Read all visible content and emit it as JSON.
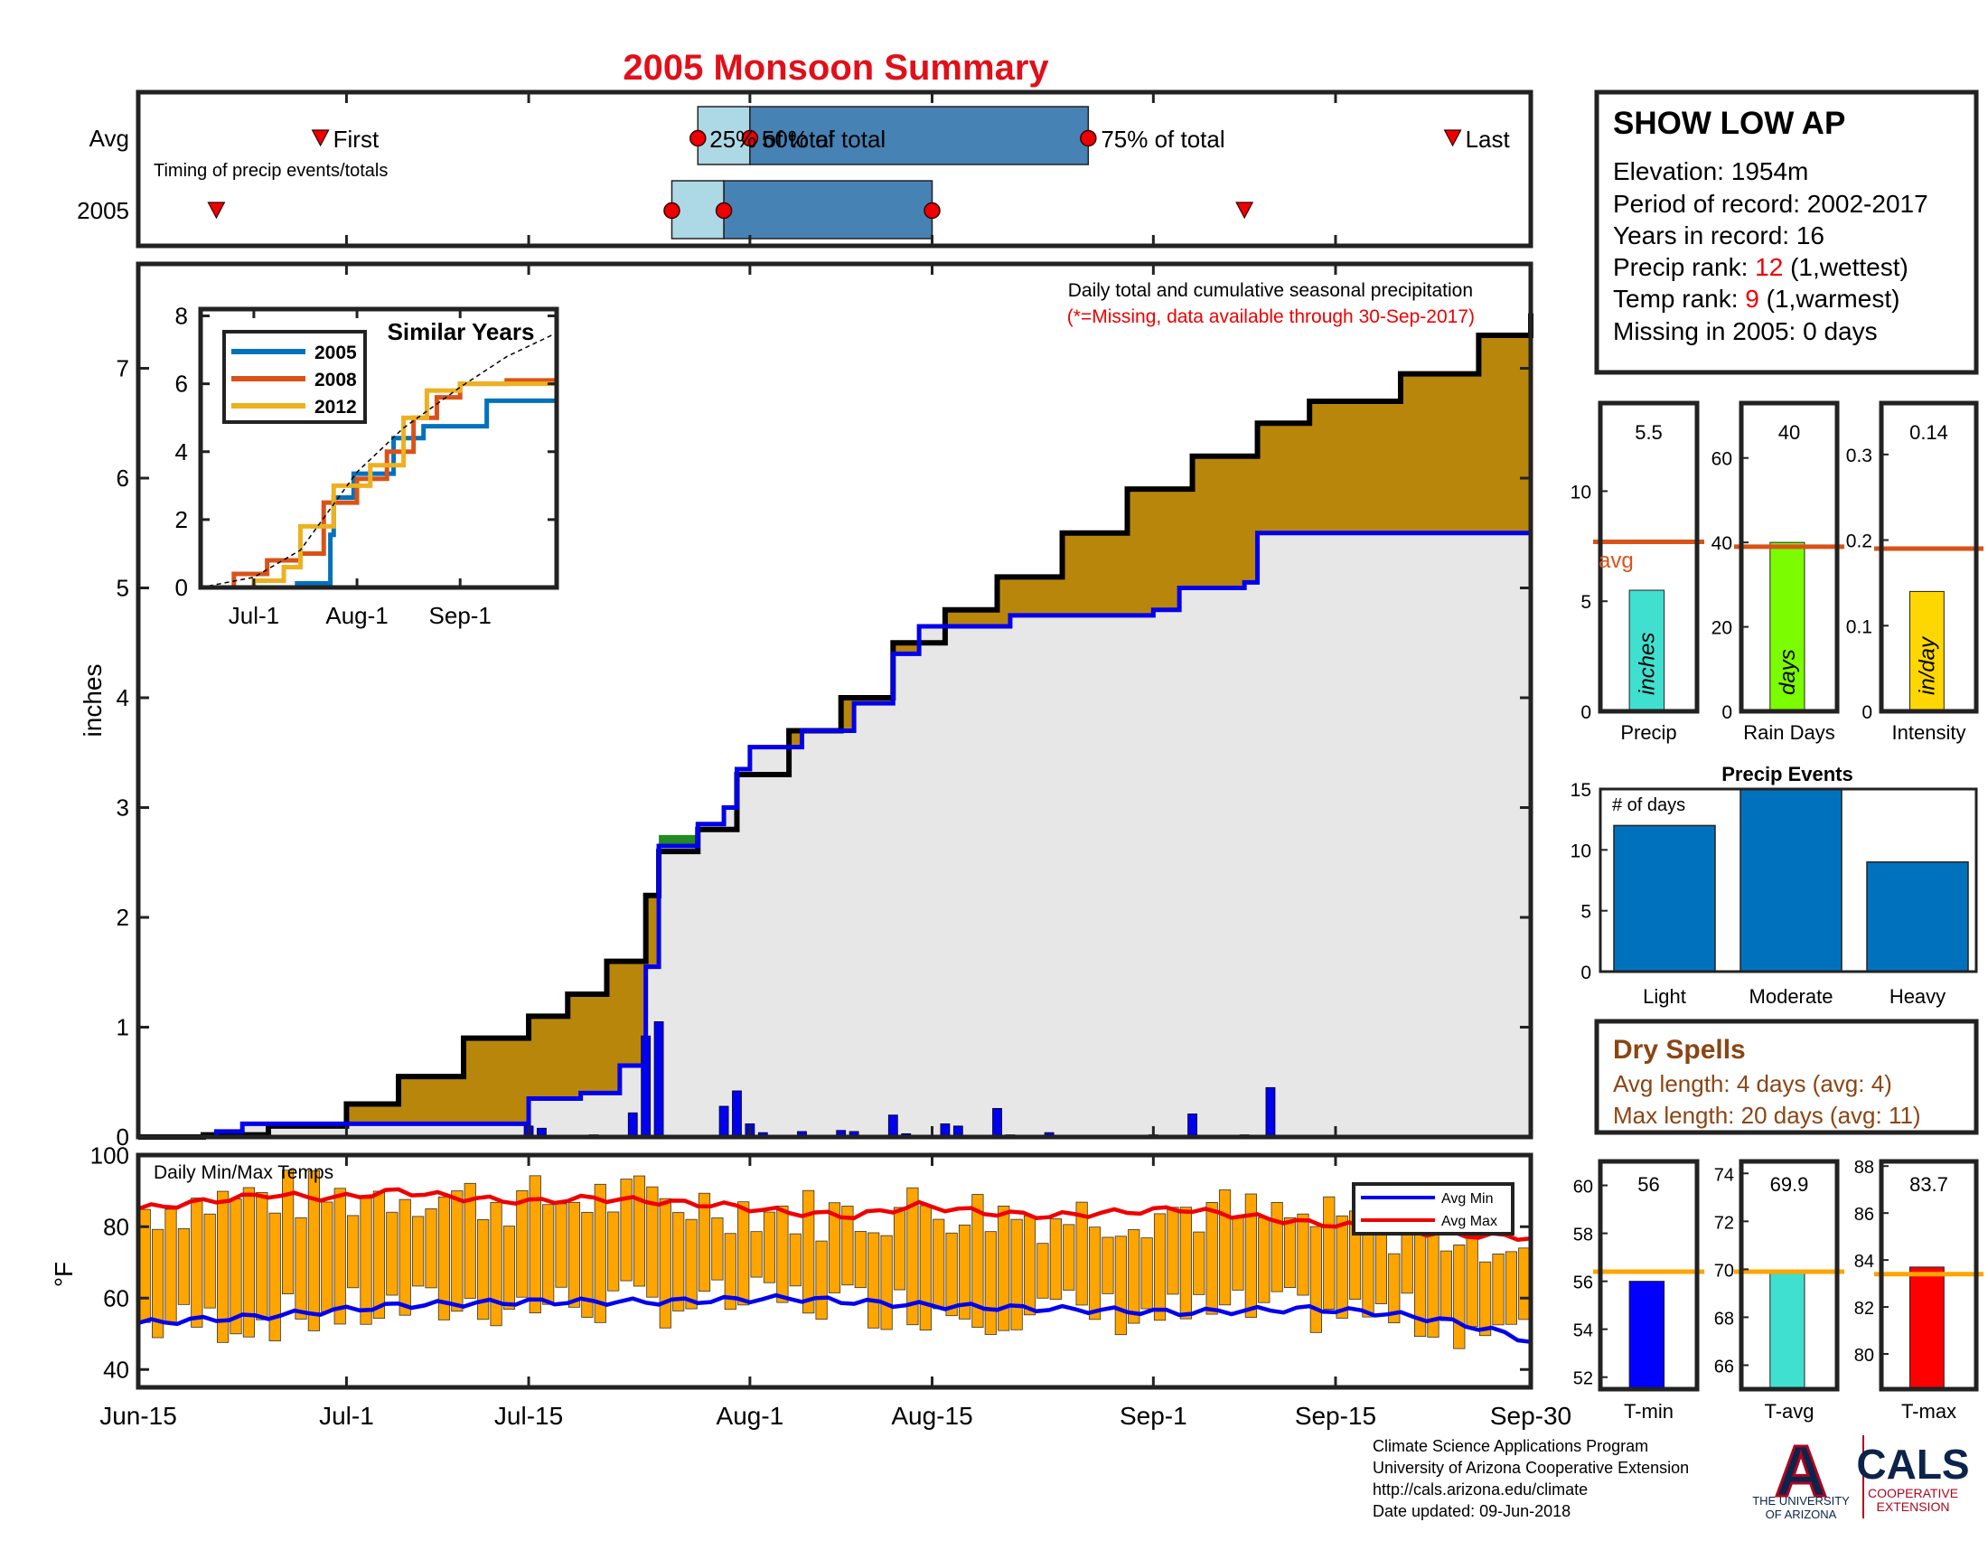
{
  "title": "2005 Monsoon Summary",
  "station": {
    "name": "SHOW LOW AP",
    "elevation": "Elevation: 1954m",
    "period": "Period of record: 2002-2017",
    "years": "Years in record: 16",
    "precip_rank_label": "Precip rank: ",
    "precip_rank_value": "12",
    "precip_rank_suffix": " (1,wettest)",
    "temp_rank_label": "Temp rank: ",
    "temp_rank_value": "9",
    "temp_rank_suffix": " (1,warmest)",
    "missing": "Missing in 2005: 0 days"
  },
  "timing": {
    "row_labels": [
      "Avg",
      "2005"
    ],
    "caption": "Timing of precip events/totals",
    "avg": {
      "first": "Jun-29",
      "q25": "Jul-28",
      "q50": "Aug-1",
      "q75": "Aug-27",
      "last": "Sep-24"
    },
    "y2005": {
      "first": "Jun-21",
      "q25": "Jul-26",
      "q50": "Jul-30",
      "q75": "Aug-15",
      "last": "Sep-8"
    },
    "labels": {
      "first": "First",
      "q25": "25% of total",
      "q50": "50% of total",
      "q75": "75% of total",
      "last": "Last"
    }
  },
  "x_axis": {
    "ticks": [
      "Jun-15",
      "Jul-1",
      "Jul-15",
      "Aug-1",
      "Aug-15",
      "Sep-1",
      "Sep-15",
      "Sep-30"
    ]
  },
  "main": {
    "ylabel": "inches",
    "ylim": [
      0,
      8
    ],
    "yticks": [
      "0",
      "1",
      "2",
      "3",
      "4",
      "5",
      "6",
      "7"
    ],
    "note1": "Daily total and cumulative seasonal precipitation",
    "note2": "(*=Missing, data available through 30-Sep-2017)",
    "colors": {
      "surplus_fill": "#b8860b",
      "deficit_fill": "#228b22",
      "base_fill": "#e8e7e7",
      "avg_line": "#000000",
      "year_line": "#0000ee",
      "daily_bar": "#0000ee"
    }
  },
  "inset": {
    "title": "Similar Years",
    "yticks": [
      "0",
      "2",
      "4",
      "6",
      "8"
    ],
    "xticks": [
      "Jul-1",
      "Aug-1",
      "Sep-1"
    ],
    "legend": [
      {
        "name": "2005",
        "color": "#0072bd"
      },
      {
        "name": "2008",
        "color": "#d95319"
      },
      {
        "name": "2012",
        "color": "#edb120"
      }
    ]
  },
  "temps": {
    "title": "Daily Min/Max Temps",
    "ylabel": "°F",
    "yticks": [
      "40",
      "60",
      "80",
      "100"
    ],
    "legend_min": "Avg Min",
    "legend_max": "Avg Max",
    "colors": {
      "bar": "#ffa500",
      "avg_min": "#0000ee",
      "avg_max": "#ee0000"
    }
  },
  "stats": [
    {
      "label": "Precip",
      "value": "5.5",
      "unit": "inches",
      "avg_label": "avg",
      "yticks": [
        "0",
        "5",
        "10"
      ],
      "color": "#40e0d0"
    },
    {
      "label": "Rain Days",
      "value": "40",
      "unit": "days",
      "yticks": [
        "0",
        "20",
        "40",
        "60"
      ],
      "color": "#7cfc00"
    },
    {
      "label": "Intensity",
      "value": "0.14",
      "unit": "in/day",
      "yticks": [
        "0",
        "0.1",
        "0.2",
        "0.3"
      ],
      "color": "#ffd700"
    }
  ],
  "events": {
    "title": "Precip Events",
    "ylabel": "# of days",
    "yticks": [
      "0",
      "5",
      "10",
      "15"
    ]
  },
  "dry_spells": {
    "title": "Dry Spells",
    "avg_length": "Avg length: 4 days (avg: 4)",
    "max_length": "Max length: 20 days (avg: 11)"
  },
  "temp_stats": [
    {
      "label": "T-min",
      "value": "56",
      "yticks": [
        "52",
        "54",
        "56",
        "58",
        "60"
      ],
      "color": "#0000ff"
    },
    {
      "label": "T-avg",
      "value": "69.9",
      "yticks": [
        "66",
        "68",
        "70",
        "72",
        "74"
      ],
      "color": "#40e0d0"
    },
    {
      "label": "T-max",
      "value": "83.7",
      "yticks": [
        "80",
        "82",
        "84",
        "86",
        "88"
      ],
      "color": "#ff0000"
    }
  ],
  "footer": {
    "line1": "Climate Science Applications Program",
    "line2": "University of Arizona Cooperative Extension",
    "line3": "http://cals.arizona.edu/climate",
    "line4": " Date updated: 09-Jun-2018"
  },
  "logos": {
    "ua_letter": "A",
    "ua_line1": "THE UNIVERSITY",
    "ua_line2": "OF ARIZONA",
    "cals": "CALS",
    "cals_line1": "COOPERATIVE",
    "cals_line2": "EXTENSION"
  },
  "chart_data": [
    {
      "type": "area",
      "title": "Daily total and cumulative seasonal precipitation",
      "ylabel": "inches",
      "ylim": [
        0,
        8
      ],
      "x_start": "Jun-15",
      "x_end": "Sep-30",
      "series": [
        {
          "name": "Avg",
          "points": [
            [
              "Jun-15",
              0
            ],
            [
              "Jun-20",
              0.02
            ],
            [
              "Jun-25",
              0.1
            ],
            [
              "Jul-1",
              0.3
            ],
            [
              "Jul-5",
              0.55
            ],
            [
              "Jul-10",
              0.9
            ],
            [
              "Jul-15",
              1.1
            ],
            [
              "Jul-18",
              1.3
            ],
            [
              "Jul-21",
              1.6
            ],
            [
              "Jul-24",
              2.2
            ],
            [
              "Jul-25",
              2.6
            ],
            [
              "Jul-28",
              2.8
            ],
            [
              "Jul-31",
              3.3
            ],
            [
              "Aug-4",
              3.7
            ],
            [
              "Aug-8",
              4.0
            ],
            [
              "Aug-12",
              4.5
            ],
            [
              "Aug-16",
              4.8
            ],
            [
              "Aug-20",
              5.1
            ],
            [
              "Aug-25",
              5.5
            ],
            [
              "Aug-30",
              5.9
            ],
            [
              "Sep-4",
              6.2
            ],
            [
              "Sep-9",
              6.5
            ],
            [
              "Sep-13",
              6.7
            ],
            [
              "Sep-20",
              6.95
            ],
            [
              "Sep-26",
              7.3
            ],
            [
              "Sep-30",
              7.5
            ]
          ]
        },
        {
          "name": "2005",
          "points": [
            [
              "Jun-15",
              0
            ],
            [
              "Jun-21",
              0.05
            ],
            [
              "Jun-23",
              0.12
            ],
            [
              "Jul-14",
              0.12
            ],
            [
              "Jul-15",
              0.35
            ],
            [
              "Jul-19",
              0.4
            ],
            [
              "Jul-22",
              0.65
            ],
            [
              "Jul-24",
              1.55
            ],
            [
              "Jul-25",
              2.65
            ],
            [
              "Jul-28",
              2.85
            ],
            [
              "Jul-30",
              3.0
            ],
            [
              "Jul-31",
              3.35
            ],
            [
              "Aug-1",
              3.55
            ],
            [
              "Aug-5",
              3.7
            ],
            [
              "Aug-9",
              3.95
            ],
            [
              "Aug-12",
              4.4
            ],
            [
              "Aug-14",
              4.65
            ],
            [
              "Aug-21",
              4.75
            ],
            [
              "Aug-29",
              4.75
            ],
            [
              "Sep-1",
              4.8
            ],
            [
              "Sep-3",
              5.0
            ],
            [
              "Sep-8",
              5.05
            ],
            [
              "Sep-9",
              5.5
            ],
            [
              "Sep-30",
              5.5
            ]
          ]
        }
      ],
      "daily_bars": [
        [
          "Jul-15",
          0.1
        ],
        [
          "Jul-16",
          0.08
        ],
        [
          "Jul-20",
          0.02
        ],
        [
          "Jul-23",
          0.22
        ],
        [
          "Jul-24",
          0.92
        ],
        [
          "Jul-25",
          1.05
        ],
        [
          "Jul-30",
          0.28
        ],
        [
          "Jul-31",
          0.42
        ],
        [
          "Aug-1",
          0.12
        ],
        [
          "Aug-2",
          0.04
        ],
        [
          "Aug-5",
          0.05
        ],
        [
          "Aug-8",
          0.06
        ],
        [
          "Aug-9",
          0.05
        ],
        [
          "Aug-12",
          0.2
        ],
        [
          "Aug-13",
          0.03
        ],
        [
          "Aug-16",
          0.12
        ],
        [
          "Aug-17",
          0.1
        ],
        [
          "Aug-20",
          0.26
        ],
        [
          "Aug-21",
          0.02
        ],
        [
          "Aug-24",
          0.04
        ],
        [
          "Sep-1",
          0.02
        ],
        [
          "Sep-4",
          0.21
        ],
        [
          "Sep-8",
          0.02
        ],
        [
          "Sep-10",
          0.45
        ]
      ]
    },
    {
      "type": "line",
      "title": "Similar Years",
      "ylim": [
        0,
        8
      ],
      "series": [
        {
          "name": "2005",
          "points": [
            [
              "Jun-15",
              0
            ],
            [
              "Jul-14",
              0.12
            ],
            [
              "Jul-24",
              1.55
            ],
            [
              "Jul-25",
              2.65
            ],
            [
              "Jul-31",
              3.35
            ],
            [
              "Aug-12",
              4.4
            ],
            [
              "Aug-21",
              4.75
            ],
            [
              "Sep-9",
              5.5
            ],
            [
              "Sep-30",
              5.5
            ]
          ]
        },
        {
          "name": "2008",
          "points": [
            [
              "Jun-15",
              0
            ],
            [
              "Jun-25",
              0.4
            ],
            [
              "Jul-5",
              0.8
            ],
            [
              "Jul-15",
              1.0
            ],
            [
              "Jul-22",
              2.5
            ],
            [
              "Aug-1",
              3.2
            ],
            [
              "Aug-10",
              4.0
            ],
            [
              "Aug-18",
              5.0
            ],
            [
              "Aug-25",
              5.6
            ],
            [
              "Sep-1",
              6.0
            ],
            [
              "Sep-15",
              6.1
            ],
            [
              "Sep-30",
              6.3
            ]
          ]
        },
        {
          "name": "2012",
          "points": [
            [
              "Jun-15",
              0
            ],
            [
              "Jul-1",
              0.2
            ],
            [
              "Jul-10",
              0.6
            ],
            [
              "Jul-15",
              1.8
            ],
            [
              "Jul-25",
              3.0
            ],
            [
              "Aug-5",
              3.6
            ],
            [
              "Aug-15",
              5.0
            ],
            [
              "Aug-22",
              5.8
            ],
            [
              "Sep-1",
              6.0
            ],
            [
              "Sep-30",
              6.5
            ]
          ]
        },
        {
          "name": "Avg",
          "points": [
            [
              "Jun-15",
              0
            ],
            [
              "Jul-1",
              0.3
            ],
            [
              "Jul-15",
              1.1
            ],
            [
              "Aug-1",
              3.4
            ],
            [
              "Aug-15",
              4.7
            ],
            [
              "Sep-1",
              5.9
            ],
            [
              "Sep-15",
              6.8
            ],
            [
              "Sep-30",
              7.5
            ]
          ]
        }
      ]
    },
    {
      "type": "bar",
      "title": "Daily Min/Max Temps",
      "ylabel": "°F",
      "ylim": [
        35,
        100
      ],
      "avg_max": [
        [
          0,
          85
        ],
        [
          5,
          87
        ],
        [
          10,
          89
        ],
        [
          15,
          88
        ],
        [
          20,
          90
        ],
        [
          25,
          88
        ],
        [
          30,
          87
        ],
        [
          35,
          88
        ],
        [
          40,
          87
        ],
        [
          45,
          86
        ],
        [
          50,
          84
        ],
        [
          55,
          83
        ],
        [
          60,
          86
        ],
        [
          65,
          84
        ],
        [
          70,
          83
        ],
        [
          75,
          84
        ],
        [
          80,
          85
        ],
        [
          85,
          83
        ],
        [
          90,
          81
        ],
        [
          95,
          80
        ],
        [
          100,
          78
        ],
        [
          107,
          77
        ]
      ],
      "avg_min": [
        [
          0,
          53
        ],
        [
          10,
          55
        ],
        [
          20,
          58
        ],
        [
          30,
          59
        ],
        [
          40,
          59
        ],
        [
          50,
          60
        ],
        [
          60,
          58
        ],
        [
          70,
          57
        ],
        [
          80,
          56
        ],
        [
          90,
          57
        ],
        [
          95,
          56
        ],
        [
          100,
          54
        ],
        [
          104,
          51
        ],
        [
          107,
          48
        ]
      ]
    },
    {
      "type": "bar",
      "title": "Precip Events",
      "categories": [
        "Light",
        "Moderate",
        "Heavy"
      ],
      "values": [
        12,
        15,
        9
      ],
      "ylim": [
        0,
        15
      ]
    },
    {
      "type": "bar",
      "categories": [
        "Precip",
        "Rain Days",
        "Intensity"
      ],
      "values": [
        5.5,
        40,
        0.14
      ],
      "averages": [
        7.7,
        39,
        0.19
      ],
      "ylims": [
        [
          0,
          14
        ],
        [
          0,
          73
        ],
        [
          0,
          0.36
        ]
      ]
    },
    {
      "type": "bar",
      "categories": [
        "T-min",
        "T-avg",
        "T-max"
      ],
      "values": [
        56,
        69.9,
        83.7
      ],
      "averages": [
        56.4,
        69.9,
        83.4
      ],
      "ylims": [
        [
          51.5,
          61
        ],
        [
          65,
          74.5
        ],
        [
          78.5,
          88.2
        ]
      ]
    }
  ]
}
